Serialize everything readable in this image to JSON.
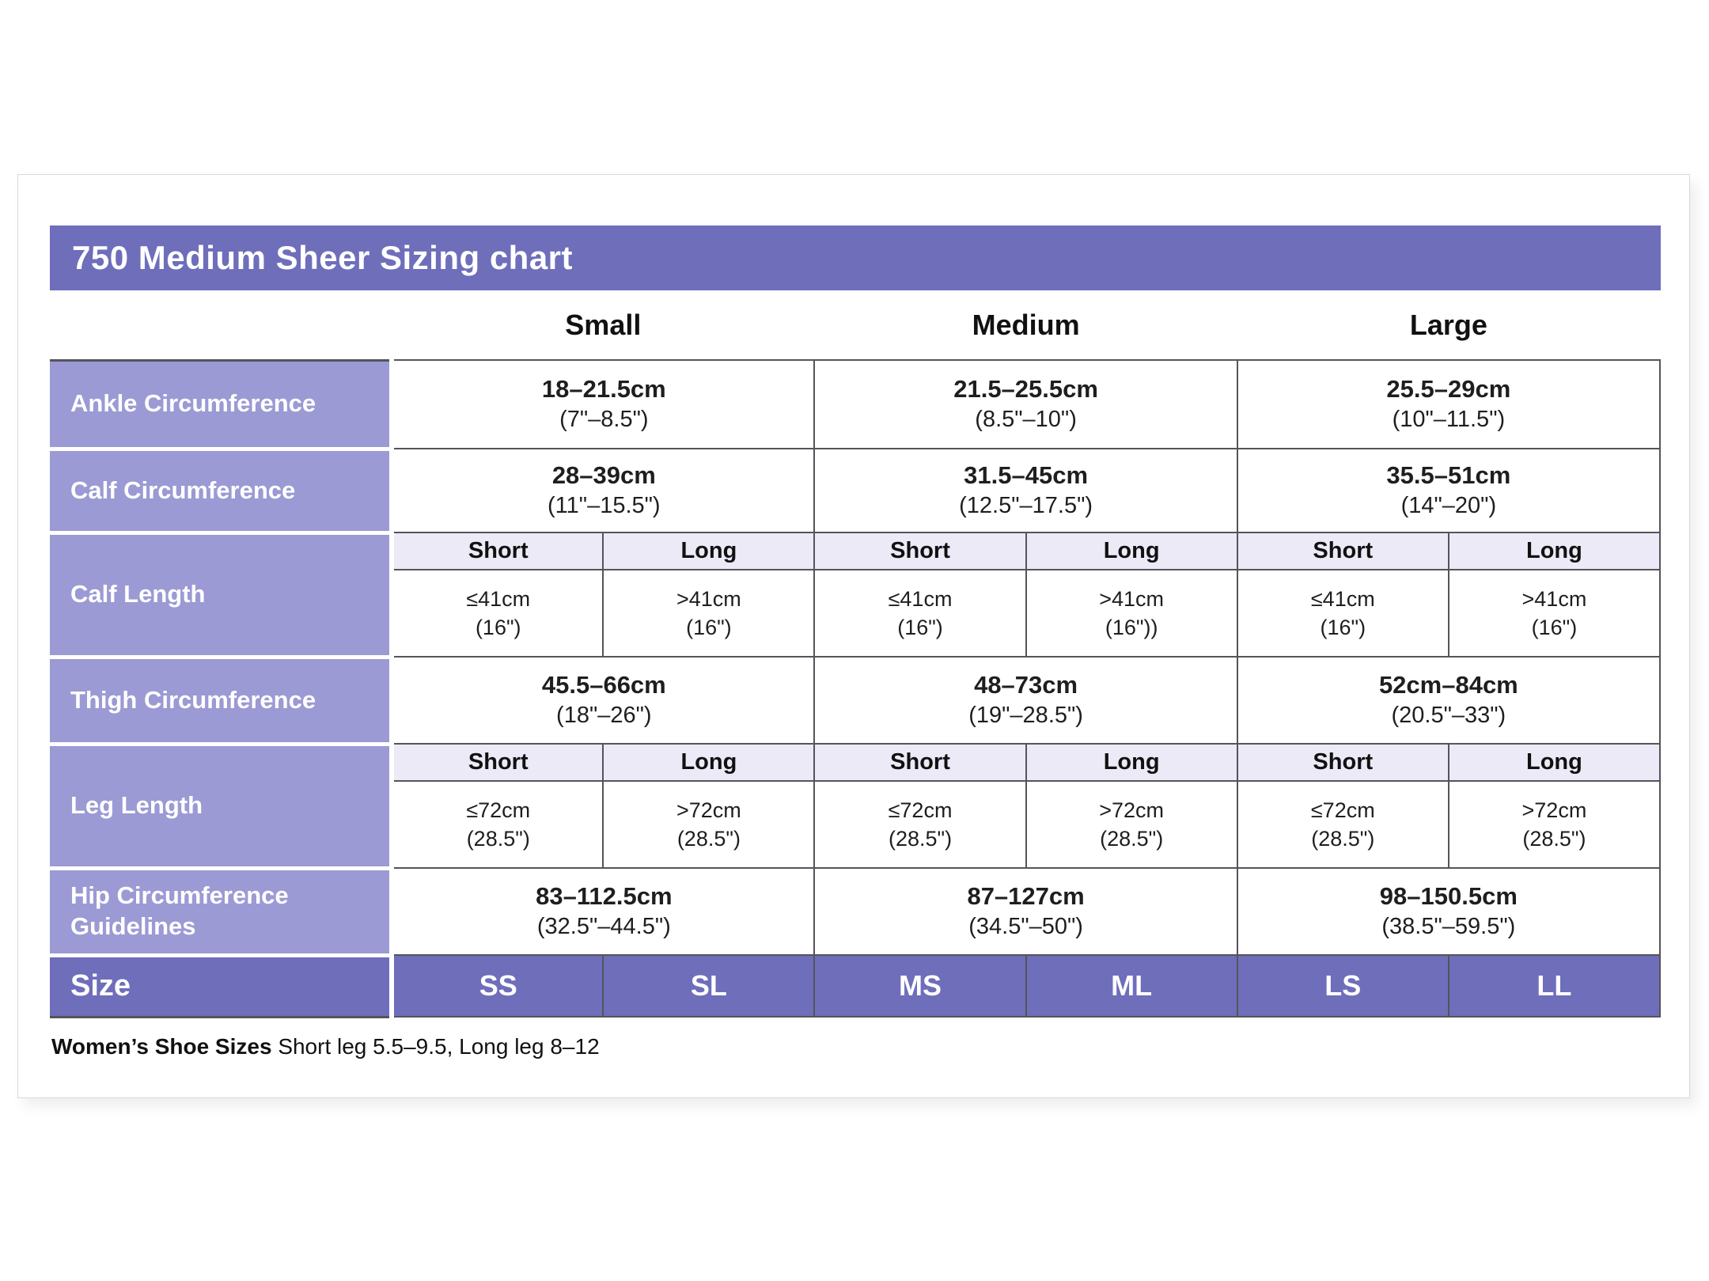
{
  "title": "750 Medium Sheer Sizing chart",
  "size_headers": [
    "Small",
    "Medium",
    "Large"
  ],
  "length_headers": [
    "Short",
    "Long"
  ],
  "rows": {
    "ankle": {
      "label": "Ankle Circumference",
      "values": [
        {
          "cm": "18–21.5cm",
          "inch": "(7\"–8.5\")"
        },
        {
          "cm": "21.5–25.5cm",
          "inch": "(8.5\"–10\")"
        },
        {
          "cm": "25.5–29cm",
          "inch": "(10\"–11.5\")"
        }
      ]
    },
    "calf_circumference": {
      "label": "Calf Circumference",
      "values": [
        {
          "cm": "28–39cm",
          "inch": "(11\"–15.5\")"
        },
        {
          "cm": "31.5–45cm",
          "inch": "(12.5\"–17.5\")"
        },
        {
          "cm": "35.5–51cm",
          "inch": "(14\"–20\")"
        }
      ]
    },
    "calf_length": {
      "label": "Calf Length",
      "values": [
        {
          "cm": "≤41cm",
          "inch": "(16\")"
        },
        {
          "cm": ">41cm",
          "inch": "(16\")"
        },
        {
          "cm": "≤41cm",
          "inch": "(16\")"
        },
        {
          "cm": ">41cm",
          "inch": "(16\"))"
        },
        {
          "cm": "≤41cm",
          "inch": "(16\")"
        },
        {
          "cm": ">41cm",
          "inch": "(16\")"
        }
      ]
    },
    "thigh": {
      "label": "Thigh Circumference",
      "values": [
        {
          "cm": "45.5–66cm",
          "inch": "(18\"–26\")"
        },
        {
          "cm": "48–73cm",
          "inch": "(19\"–28.5\")"
        },
        {
          "cm": "52cm–84cm",
          "inch": "(20.5\"–33\")"
        }
      ]
    },
    "leg_length": {
      "label": "Leg Length",
      "values": [
        {
          "cm": "≤72cm",
          "inch": "(28.5\")"
        },
        {
          "cm": ">72cm",
          "inch": "(28.5\")"
        },
        {
          "cm": "≤72cm",
          "inch": "(28.5\")"
        },
        {
          "cm": ">72cm",
          "inch": "(28.5\")"
        },
        {
          "cm": "≤72cm",
          "inch": "(28.5\")"
        },
        {
          "cm": ">72cm",
          "inch": "(28.5\")"
        }
      ]
    },
    "hip": {
      "label": "Hip Circumference Guidelines",
      "values": [
        {
          "cm": "83–112.5cm",
          "inch": "(32.5\"–44.5\")"
        },
        {
          "cm": "87–127cm",
          "inch": "(34.5\"–50\")"
        },
        {
          "cm": "98–150.5cm",
          "inch": "(38.5\"–59.5\")"
        }
      ]
    },
    "size": {
      "label": "Size",
      "values": [
        "SS",
        "SL",
        "MS",
        "ML",
        "LS",
        "LL"
      ]
    }
  },
  "footnote": {
    "bold": "Women’s Shoe Sizes",
    "text": "Short leg 5.5–9.5, Long leg 8–12"
  },
  "colors": {
    "header_purple": "#6E6EBB",
    "label_purple": "#9B9AD4",
    "subheader_lavender": "#EBEAF6",
    "border_dark": "#54545A"
  }
}
